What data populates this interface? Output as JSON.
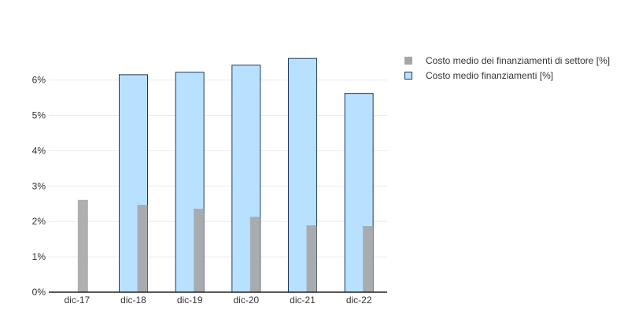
{
  "chart_data": {
    "type": "bar",
    "categories": [
      "dic-17",
      "dic-18",
      "dic-19",
      "dic-20",
      "dic-21",
      "dic-22"
    ],
    "series": [
      {
        "name": "Costo medio finanziamenti [%]",
        "values": [
          null,
          6.15,
          6.22,
          6.42,
          6.61,
          5.62
        ],
        "color": "#b8e0ff",
        "stroke": "#1f3a5f"
      },
      {
        "name": "Costo medio dei finanziamenti di settore [%]",
        "values": [
          2.61,
          2.47,
          2.36,
          2.13,
          1.89,
          1.87
        ],
        "color": "#a6a6a6"
      }
    ],
    "ylim": [
      0,
      7
    ],
    "yticks": [
      "0%",
      "1%",
      "2%",
      "3%",
      "4%",
      "5%",
      "6%"
    ],
    "grid": true,
    "legend": "top-right"
  },
  "legend": [
    {
      "label": "Costo medio dei finanziamenti di settore [%]",
      "color": "#a6a6a6",
      "border": "#a6a6a6"
    },
    {
      "label": "Costo medio finanziamenti [%]",
      "color": "#b8e0ff",
      "border": "#1f3a5f"
    }
  ]
}
